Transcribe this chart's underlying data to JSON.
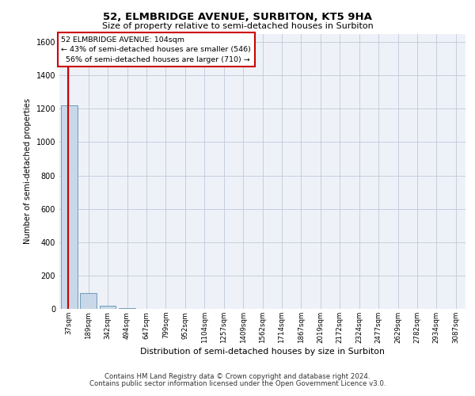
{
  "title": "52, ELMBRIDGE AVENUE, SURBITON, KT5 9HA",
  "subtitle": "Size of property relative to semi-detached houses in Surbiton",
  "xlabel": "Distribution of semi-detached houses by size in Surbiton",
  "ylabel": "Number of semi-detached properties",
  "bar_labels": [
    "37sqm",
    "189sqm",
    "342sqm",
    "494sqm",
    "647sqm",
    "799sqm",
    "952sqm",
    "1104sqm",
    "1257sqm",
    "1409sqm",
    "1562sqm",
    "1714sqm",
    "1867sqm",
    "2019sqm",
    "2172sqm",
    "2324sqm",
    "2477sqm",
    "2629sqm",
    "2782sqm",
    "2934sqm",
    "3087sqm"
  ],
  "bar_values": [
    1220,
    95,
    18,
    4,
    2,
    1,
    1,
    0,
    0,
    0,
    0,
    0,
    0,
    0,
    0,
    0,
    0,
    0,
    0,
    0,
    0
  ],
  "bar_color": "#c8d8e8",
  "bar_edge_color": "#6090b0",
  "property_label": "52 ELMBRIDGE AVENUE: 104sqm",
  "pct_smaller": "43% of semi-detached houses are smaller (546)",
  "pct_larger": "56% of semi-detached houses are larger (710)",
  "annotation_box_color": "#cc0000",
  "ylim": [
    0,
    1650
  ],
  "yticks": [
    0,
    200,
    400,
    600,
    800,
    1000,
    1200,
    1400,
    1600
  ],
  "grid_color": "#c0c8d8",
  "background_color": "#eef2f8",
  "footer_line1": "Contains HM Land Registry data © Crown copyright and database right 2024.",
  "footer_line2": "Contains public sector information licensed under the Open Government Licence v3.0."
}
